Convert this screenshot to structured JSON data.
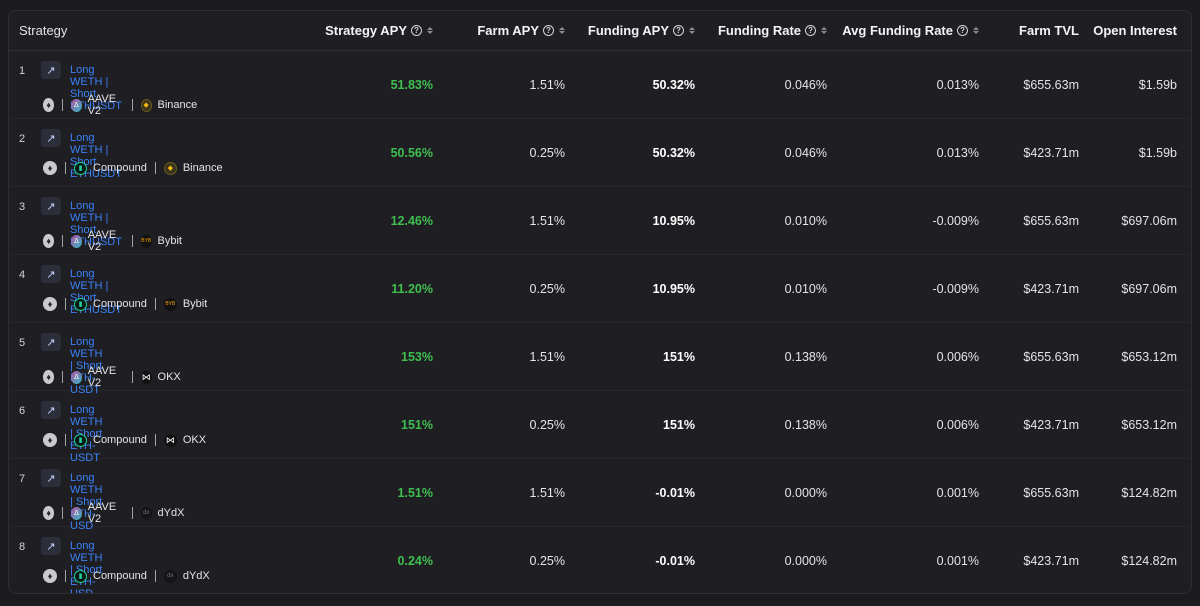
{
  "headers": {
    "strategy": "Strategy",
    "strategy_apy": "Strategy APY",
    "farm_apy": "Farm APY",
    "funding_apy": "Funding APY",
    "funding_rate": "Funding Rate",
    "avg_funding_rate": "Avg Funding Rate",
    "farm_tvl": "Farm TVL",
    "open_interest": "Open Interest"
  },
  "rows": [
    {
      "rank": "1",
      "name": "Long WETH | Short ETHUSDT",
      "protocol": "AAVE V2",
      "protocol_icon": "aave-icon",
      "exchange": "Binance",
      "exchange_icon": "binance-icon",
      "strategy_apy": "51.83%",
      "farm_apy": "1.51%",
      "funding_apy": "50.32%",
      "funding_rate": "0.046%",
      "avg_funding_rate": "0.013%",
      "farm_tvl": "$655.63m",
      "open_interest": "$1.59b"
    },
    {
      "rank": "2",
      "name": "Long WETH | Short ETHUSDT",
      "protocol": "Compound",
      "protocol_icon": "compound-icon",
      "exchange": "Binance",
      "exchange_icon": "binance-icon",
      "strategy_apy": "50.56%",
      "farm_apy": "0.25%",
      "funding_apy": "50.32%",
      "funding_rate": "0.046%",
      "avg_funding_rate": "0.013%",
      "farm_tvl": "$423.71m",
      "open_interest": "$1.59b"
    },
    {
      "rank": "3",
      "name": "Long WETH | Short ETHUSDT",
      "protocol": "AAVE V2",
      "protocol_icon": "aave-icon",
      "exchange": "Bybit",
      "exchange_icon": "bybit-icon",
      "strategy_apy": "12.46%",
      "farm_apy": "1.51%",
      "funding_apy": "10.95%",
      "funding_rate": "0.010%",
      "avg_funding_rate": "-0.009%",
      "farm_tvl": "$655.63m",
      "open_interest": "$697.06m"
    },
    {
      "rank": "4",
      "name": "Long WETH | Short ETHUSDT",
      "protocol": "Compound",
      "protocol_icon": "compound-icon",
      "exchange": "Bybit",
      "exchange_icon": "bybit-icon",
      "strategy_apy": "11.20%",
      "farm_apy": "0.25%",
      "funding_apy": "10.95%",
      "funding_rate": "0.010%",
      "avg_funding_rate": "-0.009%",
      "farm_tvl": "$423.71m",
      "open_interest": "$697.06m"
    },
    {
      "rank": "5",
      "name": "Long WETH | Short ETH-USDT",
      "protocol": "AAVE V2",
      "protocol_icon": "aave-icon",
      "exchange": "OKX",
      "exchange_icon": "okx-icon",
      "strategy_apy": "153%",
      "farm_apy": "1.51%",
      "funding_apy": "151%",
      "funding_rate": "0.138%",
      "avg_funding_rate": "0.006%",
      "farm_tvl": "$655.63m",
      "open_interest": "$653.12m"
    },
    {
      "rank": "6",
      "name": "Long WETH | Short ETH-USDT",
      "protocol": "Compound",
      "protocol_icon": "compound-icon",
      "exchange": "OKX",
      "exchange_icon": "okx-icon",
      "strategy_apy": "151%",
      "farm_apy": "0.25%",
      "funding_apy": "151%",
      "funding_rate": "0.138%",
      "avg_funding_rate": "0.006%",
      "farm_tvl": "$423.71m",
      "open_interest": "$653.12m"
    },
    {
      "rank": "7",
      "name": "Long WETH | Short ETH-USD",
      "protocol": "AAVE V2",
      "protocol_icon": "aave-icon",
      "exchange": "dYdX",
      "exchange_icon": "dydx-icon",
      "strategy_apy": "1.51%",
      "farm_apy": "1.51%",
      "funding_apy": "-0.01%",
      "funding_rate": "0.000%",
      "avg_funding_rate": "0.001%",
      "farm_tvl": "$655.63m",
      "open_interest": "$124.82m"
    },
    {
      "rank": "8",
      "name": "Long WETH | Short ETH-USD",
      "protocol": "Compound",
      "protocol_icon": "compound-icon",
      "exchange": "dYdX",
      "exchange_icon": "dydx-icon",
      "strategy_apy": "0.24%",
      "farm_apy": "0.25%",
      "funding_apy": "-0.01%",
      "funding_rate": "0.000%",
      "avg_funding_rate": "0.001%",
      "farm_tvl": "$423.71m",
      "open_interest": "$124.82m"
    }
  ],
  "colors": {
    "background": "#1b1b1e",
    "panel": "#1f1f23",
    "link": "#3b82f6",
    "positive": "#3fbf4f",
    "text": "#e4e4e7"
  }
}
